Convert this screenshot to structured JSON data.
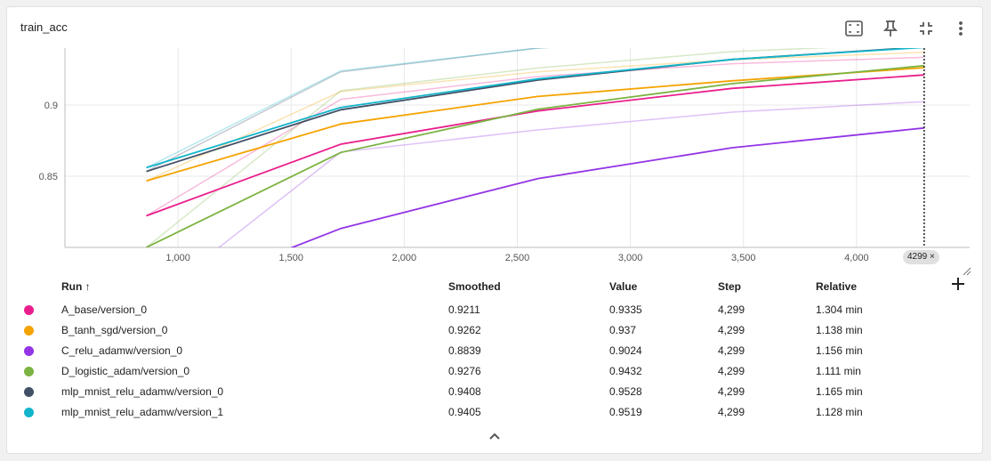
{
  "card": {
    "title": "train_acc"
  },
  "toolbar": [
    {
      "name": "fit-domain-button",
      "icon": "fit-to-screen-icon"
    },
    {
      "name": "pin-button",
      "icon": "pin-icon"
    },
    {
      "name": "collapse-button",
      "icon": "collapse-icon"
    },
    {
      "name": "more-button",
      "icon": "more-vert-icon"
    }
  ],
  "chart_data": {
    "type": "line",
    "title": "",
    "xlabel": "",
    "ylabel": "",
    "x_ticks": [
      "1,000",
      "1,500",
      "2,000",
      "2,500",
      "3,000",
      "3,500",
      "4,000"
    ],
    "x_tick_values": [
      1000,
      1500,
      2000,
      2500,
      3000,
      3500,
      4000
    ],
    "y_ticks": [
      "0.85",
      "0.9"
    ],
    "y_tick_values": [
      0.85,
      0.9
    ],
    "xlim": [
      500,
      4500
    ],
    "ylim": [
      0.8,
      0.94
    ],
    "grid": true,
    "cursor_step": 4299,
    "cursor_label": "4299 ×",
    "series": [
      {
        "name": "A_base/version_0",
        "color": "#e91e8c",
        "x": [
          860,
          1720,
          2590,
          3450,
          4299
        ],
        "smoothed": [
          0.8222,
          0.8725,
          0.8958,
          0.9117,
          0.9211
        ],
        "raw": [
          0.8222,
          0.904,
          0.92,
          0.929,
          0.9335
        ]
      },
      {
        "name": "B_tanh_sgd/version_0",
        "color": "#f5a300",
        "x": [
          860,
          1720,
          2590,
          3450,
          4299
        ],
        "smoothed": [
          0.8467,
          0.8867,
          0.906,
          0.917,
          0.9262
        ],
        "raw": [
          0.8467,
          0.9095,
          0.9233,
          0.9318,
          0.937
        ]
      },
      {
        "name": "C_relu_adamw/version_0",
        "color": "#9334e6",
        "x": [
          860,
          1720,
          2590,
          3450,
          4299
        ],
        "smoothed": [
          0.76,
          0.8133,
          0.8483,
          0.87,
          0.8839
        ],
        "raw": [
          0.76,
          0.867,
          0.8825,
          0.895,
          0.9024
        ]
      },
      {
        "name": "D_logistic_adam/version_0",
        "color": "#7cb342",
        "x": [
          860,
          1720,
          2590,
          3450,
          4299
        ],
        "smoothed": [
          0.8,
          0.8667,
          0.897,
          0.915,
          0.9276
        ],
        "raw": [
          0.8,
          0.91,
          0.926,
          0.9375,
          0.9432
        ]
      },
      {
        "name": "mlp_mnist_relu_adamw/version_0",
        "color": "#425066",
        "x": [
          860,
          1720,
          2590,
          3450,
          4299
        ],
        "smoothed": [
          0.8533,
          0.8967,
          0.9175,
          0.932,
          0.9408
        ],
        "raw": [
          0.8533,
          0.9233,
          0.94,
          0.948,
          0.9528
        ]
      },
      {
        "name": "mlp_mnist_relu_adamw/version_1",
        "color": "#12b5cb",
        "x": [
          860,
          1720,
          2590,
          3450,
          4299
        ],
        "smoothed": [
          0.856,
          0.8983,
          0.9183,
          0.932,
          0.9405
        ],
        "raw": [
          0.856,
          0.924,
          0.94,
          0.9475,
          0.9519
        ]
      }
    ]
  },
  "table": {
    "headers": {
      "run": "Run ↑",
      "smoothed": "Smoothed",
      "value": "Value",
      "step": "Step",
      "relative": "Relative"
    },
    "rows": [
      {
        "run": "A_base/version_0",
        "smoothed": "0.9211",
        "value": "0.9335",
        "step": "4,299",
        "relative": "1.304 min",
        "color": "#e91e8c"
      },
      {
        "run": "B_tanh_sgd/version_0",
        "smoothed": "0.9262",
        "value": "0.937",
        "step": "4,299",
        "relative": "1.138 min",
        "color": "#f5a300"
      },
      {
        "run": "C_relu_adamw/version_0",
        "smoothed": "0.8839",
        "value": "0.9024",
        "step": "4,299",
        "relative": "1.156 min",
        "color": "#9334e6"
      },
      {
        "run": "D_logistic_adam/version_0",
        "smoothed": "0.9276",
        "value": "0.9432",
        "step": "4,299",
        "relative": "1.111 min",
        "color": "#7cb342"
      },
      {
        "run": "mlp_mnist_relu_adamw/version_0",
        "smoothed": "0.9408",
        "value": "0.9528",
        "step": "4,299",
        "relative": "1.165 min",
        "color": "#425066"
      },
      {
        "run": "mlp_mnist_relu_adamw/version_1",
        "smoothed": "0.9405",
        "value": "0.9519",
        "step": "4,299",
        "relative": "1.128 min",
        "color": "#12b5cb"
      }
    ]
  }
}
